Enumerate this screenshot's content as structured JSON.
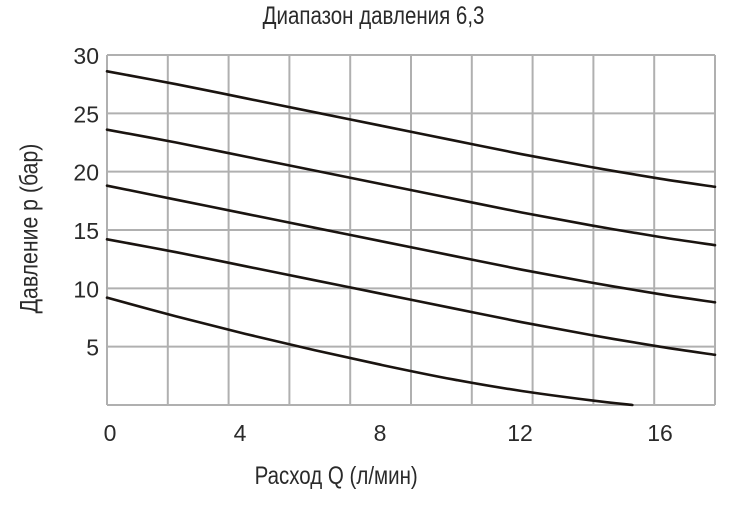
{
  "chart_data": {
    "type": "line",
    "title": "Диапазон давления 6,3",
    "xlabel": "Расход Q (л/мин)",
    "ylabel": "Давление p (бар)",
    "x_ticks": [
      0,
      4,
      8,
      12,
      16
    ],
    "y_ticks": [
      5,
      10,
      15,
      20,
      25,
      30
    ],
    "xlim": [
      0,
      17.6
    ],
    "ylim": [
      0,
      30
    ],
    "grid": true,
    "grid_columns": 10,
    "legend": null,
    "series": [
      {
        "name": "curve-1",
        "x": [
          0,
          2,
          4,
          6,
          8,
          10,
          12,
          14,
          16,
          17.6
        ],
        "values": [
          28.6,
          27.5,
          26.3,
          25.1,
          23.9,
          22.7,
          21.5,
          20.4,
          19.4,
          18.7
        ]
      },
      {
        "name": "curve-2",
        "x": [
          0,
          2,
          4,
          6,
          8,
          10,
          12,
          14,
          16,
          17.6
        ],
        "values": [
          23.6,
          22.5,
          21.3,
          20.1,
          18.9,
          17.7,
          16.5,
          15.4,
          14.4,
          13.7
        ]
      },
      {
        "name": "curve-3",
        "x": [
          0,
          2,
          4,
          6,
          8,
          10,
          12,
          14,
          16,
          17.6
        ],
        "values": [
          18.8,
          17.6,
          16.4,
          15.2,
          14.0,
          12.8,
          11.6,
          10.5,
          9.5,
          8.8
        ]
      },
      {
        "name": "curve-4",
        "x": [
          0,
          2,
          4,
          6,
          8,
          10,
          12,
          14,
          16,
          17.6
        ],
        "values": [
          14.2,
          13.1,
          11.9,
          10.7,
          9.5,
          8.3,
          7.1,
          6.0,
          5.0,
          4.3
        ]
      },
      {
        "name": "curve-5",
        "x": [
          0,
          2,
          4,
          6,
          8,
          10,
          12,
          14,
          15.2
        ],
        "values": [
          9.2,
          7.6,
          6.1,
          4.7,
          3.4,
          2.2,
          1.2,
          0.4,
          0
        ]
      }
    ]
  },
  "colors": {
    "grid": "#b0b0b0",
    "curve": "#1a1410",
    "text": "#2a2a2a"
  }
}
